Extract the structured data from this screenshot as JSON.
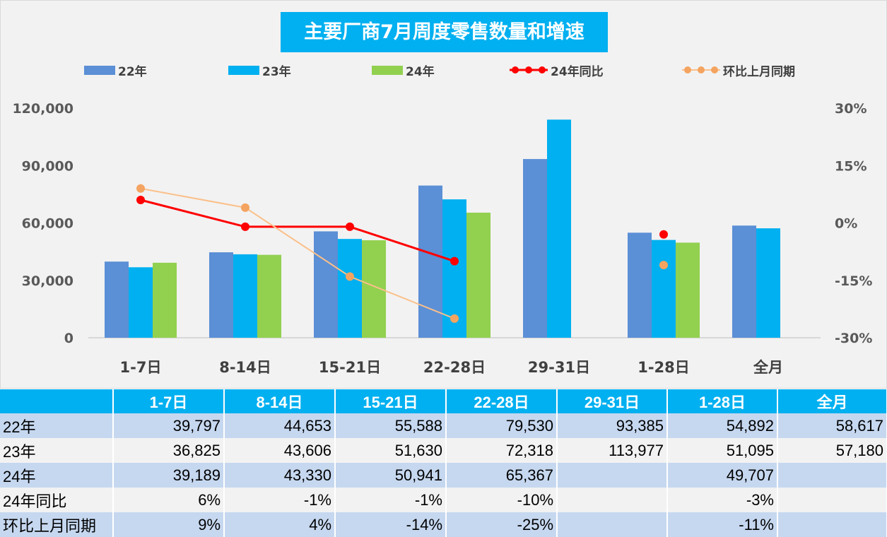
{
  "chart_data": {
    "type": "bar",
    "title": "主要厂商7月周度零售数量和增速",
    "categories": [
      "1-7日",
      "8-14日",
      "15-21日",
      "22-28日",
      "29-31日",
      "1-28日",
      "全月"
    ],
    "series": [
      {
        "name": "22年",
        "kind": "bar",
        "axis": "left",
        "color": "#5b8fd6",
        "values": [
          39797,
          44653,
          55588,
          79530,
          93385,
          54892,
          58617
        ]
      },
      {
        "name": "23年",
        "kind": "bar",
        "axis": "left",
        "color": "#00b0f0",
        "values": [
          36825,
          43606,
          51630,
          72318,
          113977,
          51095,
          57180
        ]
      },
      {
        "name": "24年",
        "kind": "bar",
        "axis": "left",
        "color": "#92d050",
        "values": [
          39189,
          43330,
          50941,
          65367,
          null,
          49707,
          null
        ]
      },
      {
        "name": "24年同比",
        "kind": "line",
        "axis": "right",
        "color": "#ff0000",
        "values": [
          0.06,
          -0.01,
          -0.01,
          -0.1,
          null,
          -0.03,
          null
        ]
      },
      {
        "name": "环比上月同期",
        "kind": "line",
        "axis": "right",
        "color": "#f4a460",
        "values": [
          0.09,
          0.04,
          -0.14,
          -0.25,
          null,
          -0.11,
          null
        ]
      }
    ],
    "ylim": [
      0,
      120000
    ],
    "yticks": [
      "120,000",
      "90,000",
      "60,000",
      "30,000",
      "0"
    ],
    "y2lim": [
      -0.3,
      0.3
    ],
    "y2ticks": [
      "30%",
      "15%",
      "0%",
      "-15%",
      "-30%"
    ],
    "legend_position": "top",
    "grid": false
  },
  "table": {
    "headers": [
      "1-7日",
      "8-14日",
      "15-21日",
      "22-28日",
      "29-31日",
      "1-28日",
      "全月"
    ],
    "rows": [
      {
        "label": "22年",
        "cells": [
          "39,797",
          "44,653",
          "55,588",
          "79,530",
          "93,385",
          "54,892",
          "58,617"
        ]
      },
      {
        "label": "23年",
        "cells": [
          "36,825",
          "43,606",
          "51,630",
          "72,318",
          "113,977",
          "51,095",
          "57,180"
        ]
      },
      {
        "label": "24年",
        "cells": [
          "39,189",
          "43,330",
          "50,941",
          "65,367",
          "",
          "49,707",
          ""
        ]
      },
      {
        "label": "24年同比",
        "cells": [
          "6%",
          "-1%",
          "-1%",
          "-10%",
          "",
          "-3%",
          ""
        ]
      },
      {
        "label": "环比上月同期",
        "cells": [
          "9%",
          "4%",
          "-14%",
          "-25%",
          "",
          "-11%",
          ""
        ]
      }
    ]
  }
}
